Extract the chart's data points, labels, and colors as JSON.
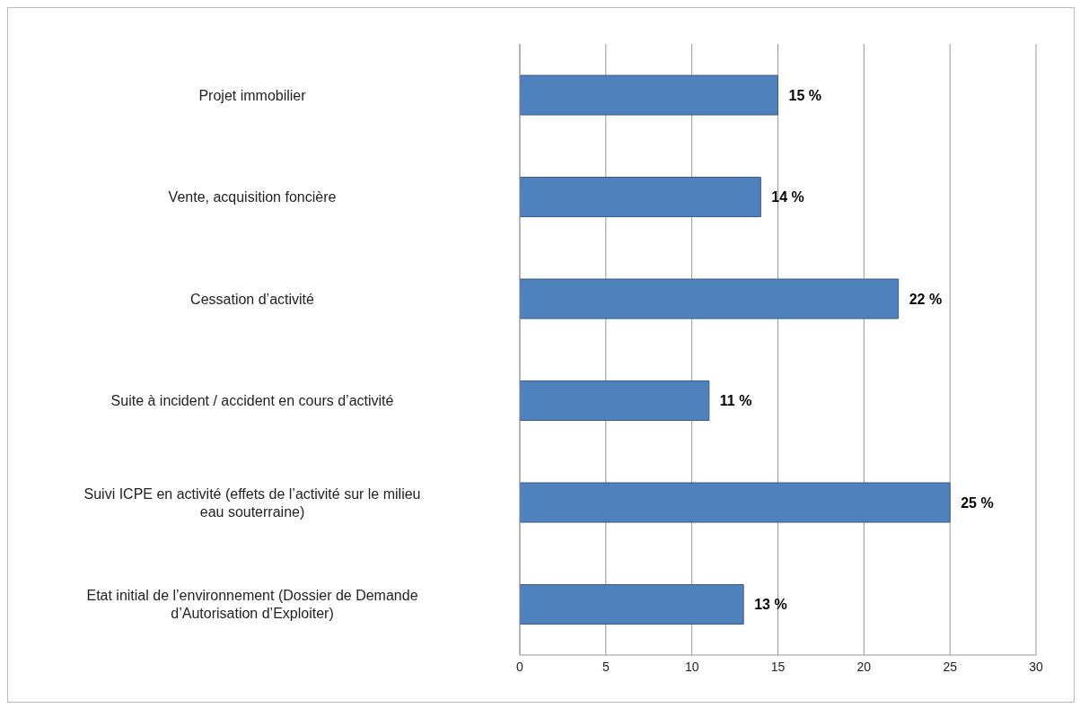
{
  "chart_data": {
    "type": "bar",
    "orientation": "horizontal",
    "categories": [
      "Projet immobilier",
      "Vente, acquisition foncière",
      "Cessation d’activité",
      "Suite à incident / accident en cours d’activité",
      "Suivi ICPE en activité (effets de l’activité sur le milieu eau souterraine)",
      "Etat initial de l’environnement (Dossier de Demande d’Autorisation d’Exploiter)"
    ],
    "values": [
      15,
      14,
      22,
      11,
      25,
      13
    ],
    "value_labels": [
      "15 %",
      "14 %",
      "22 %",
      "11 %",
      "25 %",
      "13 %"
    ],
    "color": "#4f81bd",
    "xlim": [
      0,
      30
    ],
    "xticks": [
      0,
      5,
      10,
      15,
      20,
      25,
      30
    ],
    "grid": "x"
  }
}
